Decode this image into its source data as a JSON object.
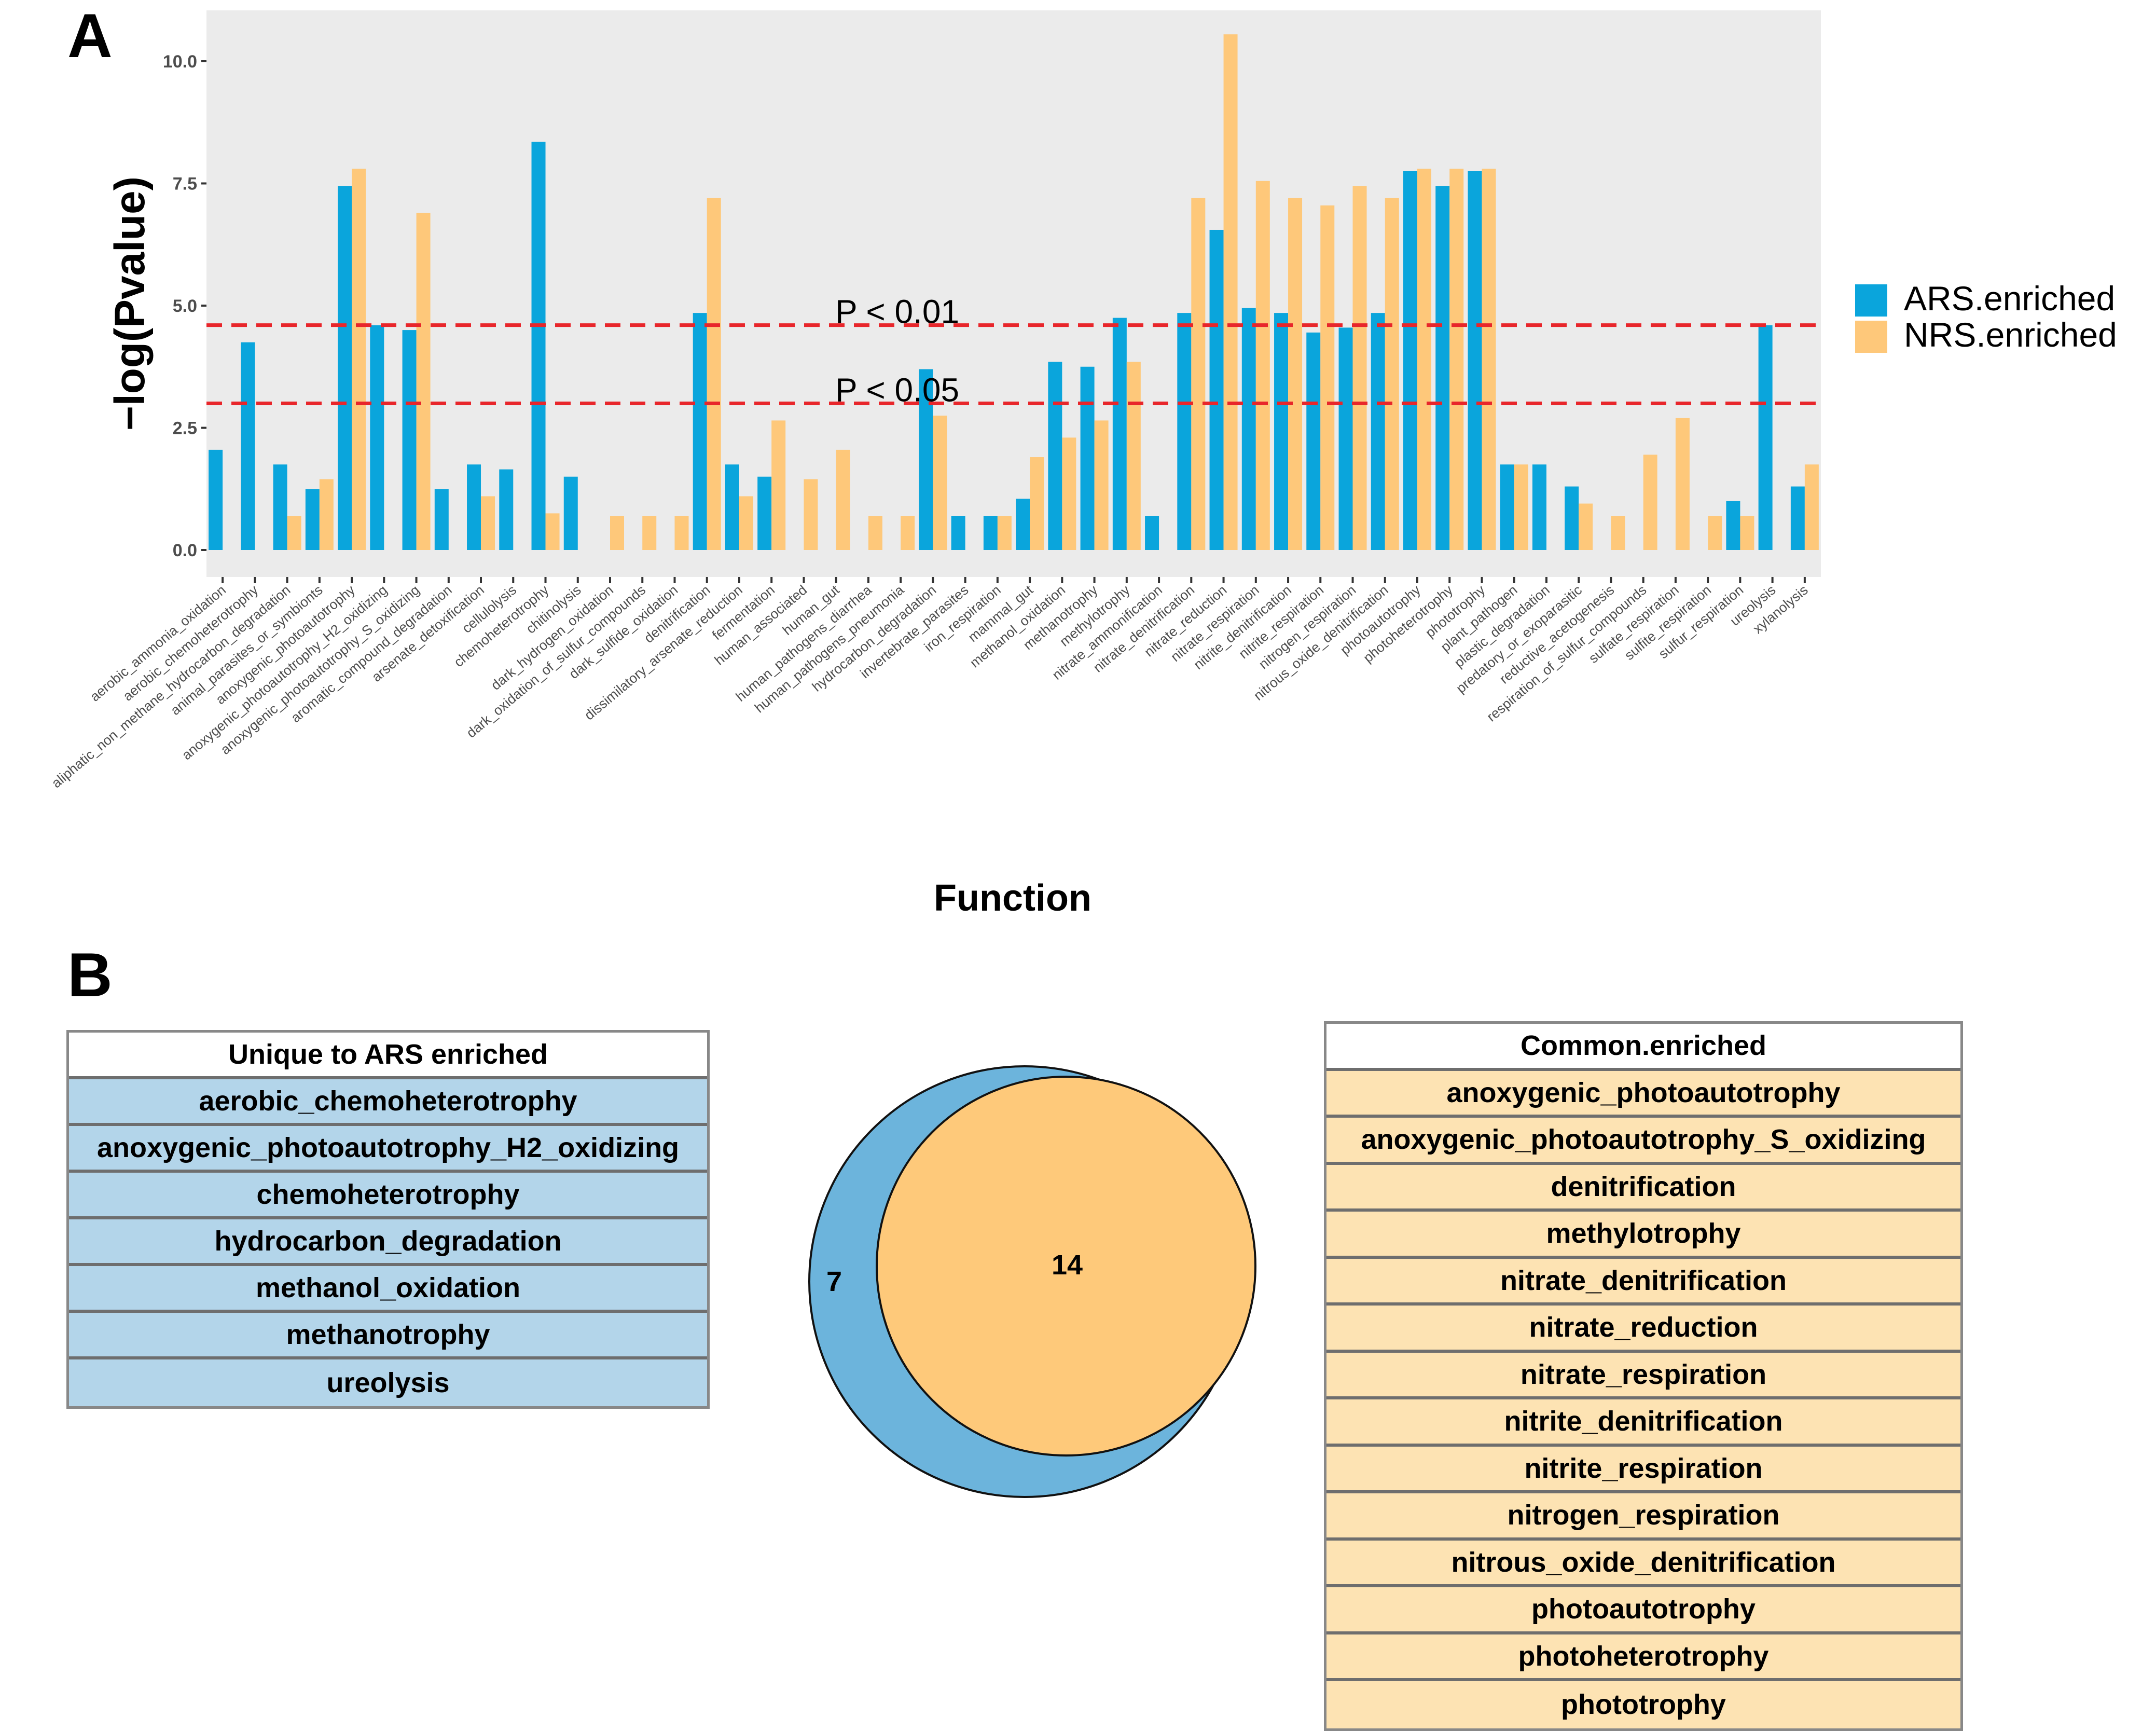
{
  "panel_a_label": "A",
  "panel_b_label": "B",
  "chart_data": {
    "type": "bar",
    "ylabel": "−log(Pvalue)",
    "xlabel": "Function",
    "ylim": [
      0,
      11.1
    ],
    "y_ticks": [
      "0.0",
      "2.5",
      "5.0",
      "7.5",
      "10.0"
    ],
    "y_tick_values": [
      0,
      2.5,
      5.0,
      7.5,
      10.0
    ],
    "grid": false,
    "legend_position": "right",
    "reference_lines": [
      {
        "label": "P < 0.01",
        "value": 4.6,
        "color": "#e8262b"
      },
      {
        "label": "P < 0.05",
        "value": 3.0,
        "color": "#e8262b"
      }
    ],
    "categories": [
      "aerobic_ammonia_oxidation",
      "aerobic_chemoheterotrophy",
      "aliphatic_non_methane_hydrocarbon_degradation",
      "animal_parasites_or_symbionts",
      "anoxygenic_photoautotrophy",
      "anoxygenic_photoautotrophy_H2_oxidizing",
      "anoxygenic_photoautotrophy_S_oxidizing",
      "aromatic_compound_degradation",
      "arsenate_detoxification",
      "cellulolysis",
      "chemoheterotrophy",
      "chitinolysis",
      "dark_hydrogen_oxidation",
      "dark_oxidation_of_sulfur_compounds",
      "dark_sulfide_oxidation",
      "denitrification",
      "dissimilatory_arsenate_reduction",
      "fermentation",
      "human_associated",
      "human_gut",
      "human_pathogens_diarrhea",
      "human_pathogens_pneumonia",
      "hydrocarbon_degradation",
      "invertebrate_parasites",
      "iron_respiration",
      "mammal_gut",
      "methanol_oxidation",
      "methanotrophy",
      "methylotrophy",
      "nitrate_ammonification",
      "nitrate_denitrification",
      "nitrate_reduction",
      "nitrate_respiration",
      "nitrite_denitrification",
      "nitrite_respiration",
      "nitrogen_respiration",
      "nitrous_oxide_denitrification",
      "photoautotrophy",
      "photoheterotrophy",
      "phototrophy",
      "plant_pathogen",
      "plastic_degradation",
      "predatory_or_exoparasitic",
      "reductive_acetogenesis",
      "respiration_of_sulfur_compounds",
      "sulfate_respiration",
      "sulfite_respiration",
      "sulfur_respiration",
      "ureolysis",
      "xylanolysis"
    ],
    "series": [
      {
        "name": "ARS.enriched",
        "color": "#0aa5dc",
        "values": [
          2.05,
          4.25,
          1.75,
          1.25,
          7.45,
          4.6,
          4.5,
          1.25,
          1.75,
          1.65,
          8.35,
          1.5,
          0,
          0,
          0,
          4.85,
          1.75,
          1.5,
          0,
          0,
          0,
          0,
          3.7,
          0.7,
          0.7,
          1.05,
          3.85,
          3.75,
          4.75,
          0.7,
          4.85,
          6.55,
          4.95,
          4.85,
          4.45,
          4.55,
          4.85,
          7.75,
          7.45,
          7.75,
          1.75,
          1.75,
          1.3,
          0,
          0,
          0,
          0,
          1.0,
          4.6,
          1.3
        ]
      },
      {
        "name": "NRS.enriched",
        "color": "#fec87a",
        "values": [
          0,
          0,
          0.7,
          1.45,
          7.8,
          0,
          6.9,
          0,
          1.1,
          0,
          0.75,
          0,
          0.7,
          0.7,
          0.7,
          7.2,
          1.1,
          2.65,
          1.45,
          2.05,
          0.7,
          0.7,
          2.75,
          0,
          0.7,
          1.9,
          2.3,
          2.65,
          3.85,
          0,
          7.2,
          10.55,
          7.55,
          7.2,
          7.05,
          7.45,
          7.2,
          7.8,
          7.8,
          7.8,
          1.75,
          0,
          0.95,
          0.7,
          1.95,
          2.7,
          0.7,
          0.7,
          0,
          1.75
        ]
      }
    ]
  },
  "venn": {
    "ars_only_count": "7",
    "common_count": "14",
    "ars_color": "#6cb4dc",
    "common_color": "#fec97a"
  },
  "ars_table": {
    "header": "Unique to ARS enriched",
    "items": [
      "aerobic_chemoheterotrophy",
      "anoxygenic_photoautotrophy_H2_oxidizing",
      "chemoheterotrophy",
      "hydrocarbon_degradation",
      "methanol_oxidation",
      "methanotrophy",
      "ureolysis"
    ]
  },
  "common_table": {
    "header": "Common.enriched",
    "items": [
      "anoxygenic_photoautotrophy",
      "anoxygenic_photoautotrophy_S_oxidizing",
      "denitrification",
      "methylotrophy",
      "nitrate_denitrification",
      "nitrate_reduction",
      "nitrate_respiration",
      "nitrite_denitrification",
      "nitrite_respiration",
      "nitrogen_respiration",
      "nitrous_oxide_denitrification",
      "photoautotrophy",
      "photoheterotrophy",
      "phototrophy"
    ]
  }
}
